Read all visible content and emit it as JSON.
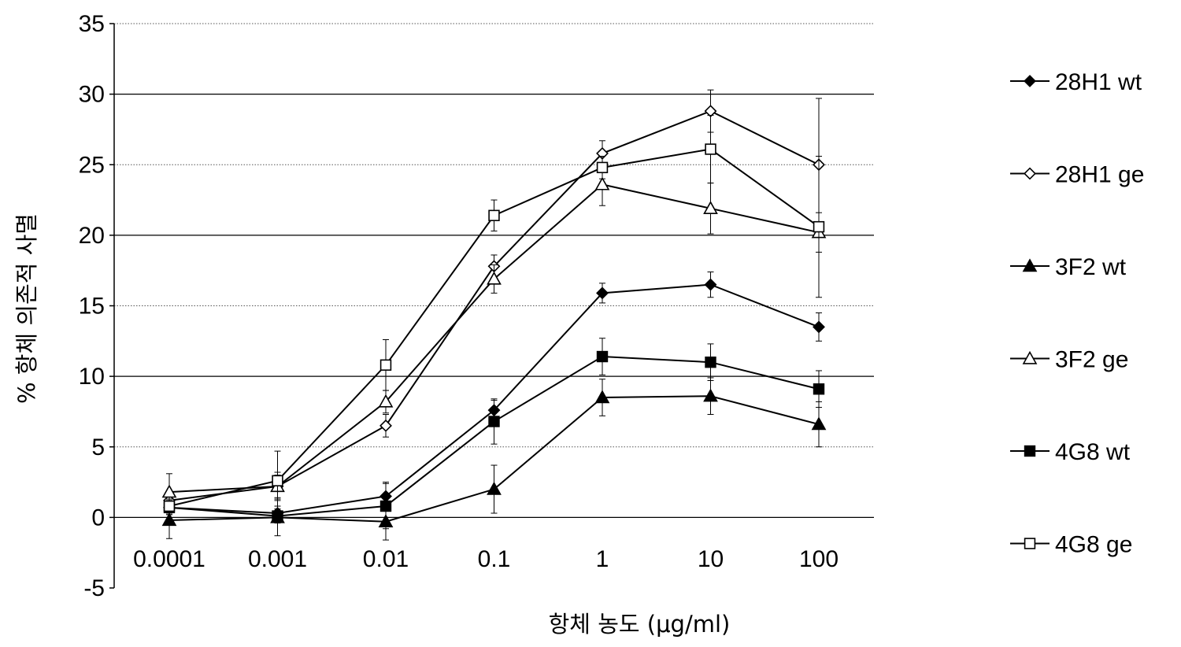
{
  "chart_data": {
    "type": "line",
    "title": "",
    "xlabel": "항체 농도 (μg/ml)",
    "ylabel": "% 항체 의존적 사멸",
    "categories": [
      "0.0001",
      "0.001",
      "0.01",
      "0.1",
      "1",
      "10",
      "100"
    ],
    "ylim": [
      -5,
      35
    ],
    "yticks": [
      -5,
      0,
      5,
      10,
      15,
      20,
      25,
      30,
      35
    ],
    "ytick_labels": [
      "-5",
      "0",
      "5",
      "10",
      "15",
      "20",
      "25",
      "30",
      "35"
    ],
    "grid": true,
    "legend_position": "right",
    "series": [
      {
        "name": "28H1 wt",
        "marker": "diamond",
        "filled": true,
        "values": [
          0.7,
          0.3,
          1.5,
          7.6,
          15.9,
          16.5,
          13.5
        ],
        "errors": [
          0.5,
          0.5,
          1.0,
          0.7,
          0.7,
          0.9,
          1.0
        ]
      },
      {
        "name": "28H1 ge",
        "marker": "diamond",
        "filled": false,
        "values": [
          1.2,
          2.2,
          6.5,
          17.8,
          25.8,
          28.8,
          25.0
        ],
        "errors": [
          0.4,
          0.8,
          0.8,
          0.8,
          0.9,
          1.5,
          4.7
        ]
      },
      {
        "name": "3F2 wt",
        "marker": "triangle",
        "filled": true,
        "values": [
          -0.2,
          0.0,
          -0.3,
          2.0,
          8.5,
          8.6,
          6.6
        ],
        "errors": [
          1.3,
          1.3,
          1.3,
          1.7,
          1.3,
          1.3,
          1.6
        ]
      },
      {
        "name": "3F2 ge",
        "marker": "triangle",
        "filled": false,
        "values": [
          1.8,
          2.2,
          8.2,
          16.9,
          23.6,
          21.9,
          20.2
        ],
        "errors": [
          1.3,
          1.0,
          0.8,
          1.0,
          1.5,
          1.8,
          1.4
        ]
      },
      {
        "name": "4G8 wt",
        "marker": "square",
        "filled": true,
        "values": [
          0.7,
          0.1,
          0.8,
          6.8,
          11.4,
          11.0,
          9.1
        ],
        "errors": [
          0.5,
          0.5,
          1.6,
          1.6,
          1.3,
          1.3,
          1.3
        ]
      },
      {
        "name": "4G8 ge",
        "marker": "square",
        "filled": false,
        "values": [
          0.8,
          2.6,
          10.8,
          21.4,
          24.8,
          26.1,
          20.6
        ],
        "errors": [
          0.5,
          2.1,
          1.8,
          1.1,
          0.8,
          2.4,
          5.0
        ]
      }
    ]
  }
}
